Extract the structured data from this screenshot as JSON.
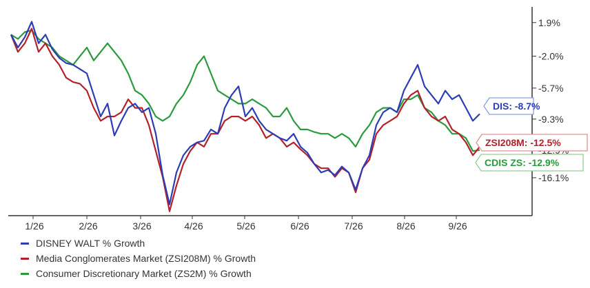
{
  "chart_data": {
    "type": "line",
    "x_ticks": [
      "1/26",
      "2/26",
      "3/26",
      "4/26",
      "5/26",
      "6/26",
      "7/26",
      "8/26",
      "9/26"
    ],
    "y_ticks": [
      "1.9%",
      "-2.0%",
      "-5.7%",
      "-9.3%",
      "-12.9%",
      "-16.1%"
    ],
    "y_tick_values": [
      1.9,
      -2.0,
      -5.7,
      -9.3,
      -12.9,
      -16.1
    ],
    "ylim": [
      -20.5,
      3.4
    ],
    "grid": false,
    "legend_position": "bottom-left",
    "series": [
      {
        "name": "DISNEY WALT % Growth",
        "end_label": "DIS: -8.7%",
        "color": "#2b3cb4",
        "label_border": "#8aa0e0",
        "values": [
          0.5,
          -1.0,
          0.2,
          2.0,
          -0.5,
          0.5,
          -1.2,
          -2.2,
          -2.8,
          -3.0,
          -3.5,
          -4.0,
          -6.5,
          -9.0,
          -7.5,
          -11.2,
          -9.5,
          -8.0,
          -7.5,
          -8.5,
          -8.0,
          -11.0,
          -15.8,
          -19.2,
          -15.5,
          -13.5,
          -12.5,
          -12.0,
          -11.8,
          -10.5,
          -11.0,
          -8.0,
          -6.5,
          -5.5,
          -9.0,
          -8.0,
          -9.5,
          -10.5,
          -11.0,
          -11.5,
          -11.8,
          -11.0,
          -12.5,
          -13.2,
          -14.5,
          -15.5,
          -15.2,
          -15.8,
          -14.8,
          -15.5,
          -17.5,
          -15.0,
          -13.5,
          -10.0,
          -8.5,
          -8.0,
          -8.5,
          -6.0,
          -4.5,
          -3.0,
          -5.5,
          -6.5,
          -7.5,
          -6.0,
          -7.0,
          -6.5,
          -8.0,
          -9.5,
          -8.7
        ]
      },
      {
        "name": "Media Conglomerates Market (ZSI208M) % Growth",
        "end_label": "ZSI208M: -12.5%",
        "color": "#b4202a",
        "label_border": "#e09090",
        "values": [
          0.5,
          -1.5,
          -0.5,
          1.2,
          -1.5,
          -0.5,
          -2.0,
          -3.0,
          -4.5,
          -5.0,
          -5.2,
          -6.0,
          -8.0,
          -9.5,
          -9.0,
          -9.0,
          -8.5,
          -7.0,
          -8.0,
          -8.0,
          -10.0,
          -13.0,
          -16.0,
          -20.0,
          -17.0,
          -14.5,
          -13.0,
          -12.0,
          -12.5,
          -11.0,
          -11.0,
          -9.5,
          -9.0,
          -9.0,
          -9.5,
          -9.0,
          -10.0,
          -11.5,
          -11.0,
          -11.5,
          -12.5,
          -12.0,
          -12.8,
          -13.5,
          -14.5,
          -15.0,
          -15.0,
          -16.0,
          -15.0,
          -15.5,
          -17.8,
          -15.0,
          -14.0,
          -11.0,
          -10.0,
          -9.5,
          -9.0,
          -7.5,
          -6.5,
          -6.0,
          -8.0,
          -9.0,
          -9.5,
          -9.0,
          -10.5,
          -11.0,
          -12.0,
          -13.5,
          -12.5
        ]
      },
      {
        "name": "Consumer Discretionary Market (ZS2M) % Growth",
        "end_label": "CDIS ZS: -12.9%",
        "color": "#2a9a3c",
        "label_border": "#90d090",
        "values": [
          0.5,
          0.0,
          0.8,
          1.0,
          0.0,
          -0.5,
          -1.0,
          -2.0,
          -2.5,
          -3.0,
          -2.0,
          -1.0,
          -2.5,
          -1.5,
          -0.5,
          -1.5,
          -2.5,
          -4.0,
          -6.0,
          -6.5,
          -7.5,
          -9.0,
          -9.5,
          -9.0,
          -7.5,
          -6.5,
          -5.0,
          -3.0,
          -2.0,
          -4.0,
          -6.0,
          -6.5,
          -7.0,
          -7.5,
          -7.5,
          -7.0,
          -7.5,
          -8.0,
          -9.0,
          -9.0,
          -8.0,
          -9.5,
          -10.5,
          -10.5,
          -10.8,
          -11.0,
          -11.0,
          -11.5,
          -11.0,
          -11.5,
          -12.5,
          -11.0,
          -10.0,
          -8.5,
          -8.0,
          -8.0,
          -8.5,
          -7.0,
          -7.0,
          -6.5,
          -8.0,
          -8.5,
          -9.5,
          -10.0,
          -11.0,
          -11.0,
          -11.5,
          -13.0,
          -12.9
        ]
      }
    ]
  }
}
